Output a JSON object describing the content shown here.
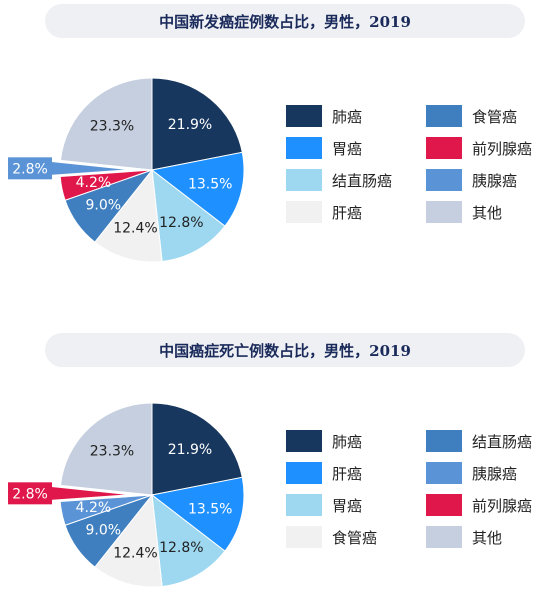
{
  "chart_data": [
    {
      "type": "pie",
      "title": "中国新发癌症例数占比，男性，2019",
      "slices": [
        {
          "label": "肺癌",
          "value": 21.9,
          "text": "21.9%",
          "color": "#17375e",
          "text_color": "#ffffff",
          "exploded": false
        },
        {
          "label": "胃癌",
          "value": 13.5,
          "text": "13.5%",
          "color": "#1e90ff",
          "text_color": "#ffffff",
          "exploded": false
        },
        {
          "label": "结直肠癌",
          "value": 12.8,
          "text": "12.8%",
          "color": "#9ed8f0",
          "text_color": "#222222",
          "exploded": false
        },
        {
          "label": "肝癌",
          "value": 12.4,
          "text": "12.4%",
          "color": "#f1f1f1",
          "text_color": "#222222",
          "exploded": false
        },
        {
          "label": "食管癌",
          "value": 9.0,
          "text": "9.0%",
          "color": "#3f7fbf",
          "text_color": "#ffffff",
          "exploded": false
        },
        {
          "label": "前列腺癌",
          "value": 4.2,
          "text": "4.2%",
          "color": "#e0174a",
          "text_color": "#ffffff",
          "exploded": false
        },
        {
          "label": "胰腺癌",
          "value": 2.8,
          "text": "2.8%",
          "color": "#5a93d6",
          "text_color": "#ffffff",
          "exploded": true
        },
        {
          "label": "其他",
          "value": 23.3,
          "text": "23.3%",
          "color": "#c5cfdf",
          "text_color": "#222222",
          "exploded": false
        }
      ],
      "legend": [
        "肺癌",
        "食管癌",
        "胃癌",
        "前列腺癌",
        "结直肠癌",
        "胰腺癌",
        "肝癌",
        "其他"
      ]
    },
    {
      "type": "pie",
      "title": "中国癌症死亡例数占比，男性，2019",
      "slices": [
        {
          "label": "肺癌",
          "value": 21.9,
          "text": "21.9%",
          "color": "#17375e",
          "text_color": "#ffffff",
          "exploded": false
        },
        {
          "label": "肝癌",
          "value": 13.5,
          "text": "13.5%",
          "color": "#1e90ff",
          "text_color": "#ffffff",
          "exploded": false
        },
        {
          "label": "胃癌",
          "value": 12.8,
          "text": "12.8%",
          "color": "#9ed8f0",
          "text_color": "#222222",
          "exploded": false
        },
        {
          "label": "食管癌",
          "value": 12.4,
          "text": "12.4%",
          "color": "#f1f1f1",
          "text_color": "#222222",
          "exploded": false
        },
        {
          "label": "结直肠癌",
          "value": 9.0,
          "text": "9.0%",
          "color": "#3f7fbf",
          "text_color": "#ffffff",
          "exploded": false
        },
        {
          "label": "胰腺癌",
          "value": 4.2,
          "text": "4.2%",
          "color": "#5a93d6",
          "text_color": "#ffffff",
          "exploded": false
        },
        {
          "label": "前列腺癌",
          "value": 2.8,
          "text": "2.8%",
          "color": "#e0174a",
          "text_color": "#ffffff",
          "exploded": true
        },
        {
          "label": "其他",
          "value": 23.3,
          "text": "23.3%",
          "color": "#c5cfdf",
          "text_color": "#222222",
          "exploded": false
        }
      ],
      "legend": [
        "肺癌",
        "结直肠癌",
        "肝癌",
        "胰腺癌",
        "胃癌",
        "前列腺癌",
        "食管癌",
        "其他"
      ]
    }
  ]
}
